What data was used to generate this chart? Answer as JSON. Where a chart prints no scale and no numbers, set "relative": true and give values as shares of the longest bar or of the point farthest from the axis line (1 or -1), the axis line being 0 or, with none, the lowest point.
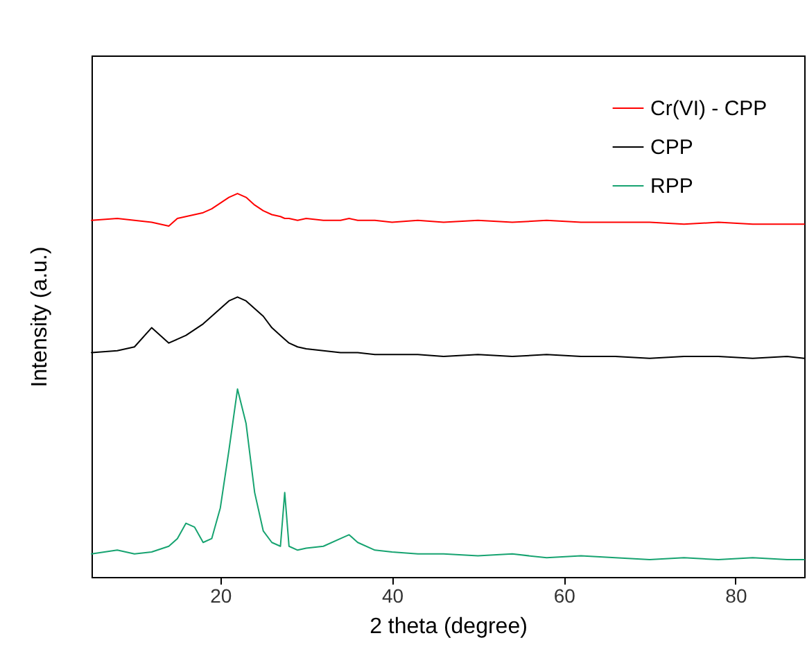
{
  "chart_data": {
    "type": "line",
    "xlabel": "2 theta (degree)",
    "ylabel": "Intensity (a.u.)",
    "relative": true,
    "xlim": [
      5,
      88
    ],
    "xticks": [
      20,
      40,
      60,
      80
    ],
    "grid": false,
    "legend": "top right",
    "marker": "none",
    "line_style": "solid",
    "x": [
      5,
      8,
      10,
      12,
      14,
      15,
      16,
      17,
      18,
      19,
      20,
      21,
      22,
      23,
      24,
      25,
      26,
      27,
      27.5,
      28,
      29,
      30,
      32,
      34,
      35,
      36,
      38,
      40,
      43,
      46,
      50,
      54,
      58,
      62,
      66,
      70,
      74,
      78,
      82,
      86,
      88
    ],
    "series": [
      {
        "name": "Cr(VI) - CPP",
        "color": "#ff0000",
        "values": [
          0.93,
          0.935,
          0.93,
          0.925,
          0.915,
          0.935,
          0.94,
          0.945,
          0.95,
          0.96,
          0.975,
          0.99,
          1.0,
          0.99,
          0.97,
          0.955,
          0.945,
          0.94,
          0.935,
          0.935,
          0.93,
          0.935,
          0.93,
          0.93,
          0.935,
          0.93,
          0.93,
          0.925,
          0.93,
          0.925,
          0.93,
          0.925,
          0.93,
          0.925,
          0.925,
          0.925,
          0.92,
          0.925,
          0.92,
          0.92,
          0.92
        ]
      },
      {
        "name": "CPP",
        "color": "#000000",
        "values": [
          0.585,
          0.59,
          0.6,
          0.65,
          0.61,
          0.62,
          0.63,
          0.645,
          0.66,
          0.68,
          0.7,
          0.72,
          0.73,
          0.72,
          0.7,
          0.68,
          0.65,
          0.63,
          0.62,
          0.61,
          0.6,
          0.595,
          0.59,
          0.585,
          0.585,
          0.585,
          0.58,
          0.58,
          0.58,
          0.575,
          0.58,
          0.575,
          0.58,
          0.575,
          0.575,
          0.57,
          0.575,
          0.575,
          0.57,
          0.575,
          0.57
        ]
      },
      {
        "name": "RPP",
        "color": "#16a370",
        "values": [
          0.06,
          0.07,
          0.06,
          0.065,
          0.08,
          0.1,
          0.14,
          0.13,
          0.09,
          0.1,
          0.18,
          0.33,
          0.49,
          0.4,
          0.22,
          0.12,
          0.09,
          0.08,
          0.22,
          0.08,
          0.07,
          0.075,
          0.08,
          0.1,
          0.11,
          0.09,
          0.07,
          0.065,
          0.06,
          0.06,
          0.055,
          0.06,
          0.05,
          0.055,
          0.05,
          0.045,
          0.05,
          0.045,
          0.05,
          0.045,
          0.045
        ]
      }
    ]
  }
}
